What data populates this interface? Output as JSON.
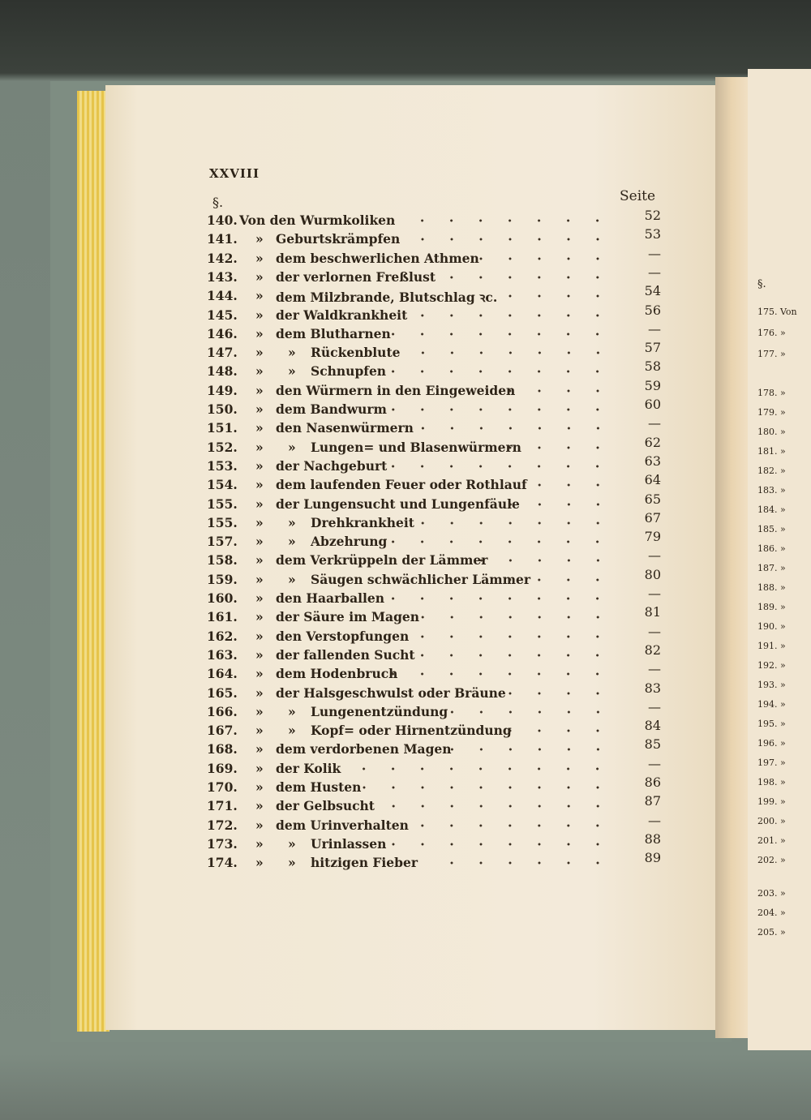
{
  "header": {
    "folio": "XXVIII",
    "section_mark": "§.",
    "page_column_label": "Seite"
  },
  "entries": [
    {
      "num": "140.",
      "quotes": 0,
      "text": "Von den Wurmkoliken",
      "page": "52"
    },
    {
      "num": "141.",
      "quotes": 1,
      "text": "Geburtskrämpfen",
      "page": "53"
    },
    {
      "num": "142.",
      "quotes": 1,
      "text": "dem beschwerlichen Athmen",
      "page": "—"
    },
    {
      "num": "143.",
      "quotes": 1,
      "text": "der verlornen Freßlust",
      "page": "—"
    },
    {
      "num": "144.",
      "quotes": 1,
      "text": "dem Milzbrande, Blutschlag ꝛc.",
      "page": "54"
    },
    {
      "num": "145.",
      "quotes": 1,
      "text": "der Waldkrankheit",
      "page": "56"
    },
    {
      "num": "146.",
      "quotes": 1,
      "text": "dem Blutharnen",
      "page": "—"
    },
    {
      "num": "147.",
      "quotes": 2,
      "text": "Rückenblute",
      "page": "57"
    },
    {
      "num": "148.",
      "quotes": 2,
      "text": "Schnupfen",
      "page": "58"
    },
    {
      "num": "149.",
      "quotes": 1,
      "text": "den Würmern in den Eingeweiden",
      "page": "59"
    },
    {
      "num": "150.",
      "quotes": 1,
      "text": "dem Bandwurm",
      "page": "60"
    },
    {
      "num": "151.",
      "quotes": 1,
      "text": "den Nasenwürmern",
      "page": "—"
    },
    {
      "num": "152.",
      "quotes": 2,
      "text": "Lungen= und Blasenwürmern",
      "page": "62"
    },
    {
      "num": "153.",
      "quotes": 1,
      "text": "der Nachgeburt",
      "page": "63"
    },
    {
      "num": "154.",
      "quotes": 1,
      "text": "dem laufenden Feuer oder Rothlauf",
      "page": "64"
    },
    {
      "num": "155.",
      "quotes": 1,
      "text": "der Lungensucht und Lungenfäule",
      "page": "65"
    },
    {
      "num": "155.",
      "quotes": 2,
      "text": "Drehkrankheit",
      "page": "67"
    },
    {
      "num": "157.",
      "quotes": 2,
      "text": "Abzehrung",
      "page": "79"
    },
    {
      "num": "158.",
      "quotes": 1,
      "text": "dem Verkrüppeln der Lämmer",
      "page": "—"
    },
    {
      "num": "159.",
      "quotes": 2,
      "text": "Säugen schwächlicher Lämmer",
      "page": "80"
    },
    {
      "num": "160.",
      "quotes": 1,
      "text": "den Haarballen",
      "page": "—"
    },
    {
      "num": "161.",
      "quotes": 1,
      "text": "der Säure im Magen",
      "page": "81"
    },
    {
      "num": "162.",
      "quotes": 1,
      "text": "den Verstopfungen",
      "page": "—"
    },
    {
      "num": "163.",
      "quotes": 1,
      "text": "der fallenden Sucht",
      "page": "82"
    },
    {
      "num": "164.",
      "quotes": 1,
      "text": "dem Hodenbruch",
      "page": "—"
    },
    {
      "num": "165.",
      "quotes": 1,
      "text": "der Halsgeschwulst oder Bräune",
      "page": "83"
    },
    {
      "num": "166.",
      "quotes": 2,
      "text": "Lungenentzündung",
      "page": "—"
    },
    {
      "num": "167.",
      "quotes": 2,
      "text": "Kopf= oder Hirnentzündung",
      "page": "84"
    },
    {
      "num": "168.",
      "quotes": 1,
      "text": "dem verdorbenen Magen",
      "page": "85"
    },
    {
      "num": "169.",
      "quotes": 1,
      "text": "der Kolik",
      "page": "—"
    },
    {
      "num": "170.",
      "quotes": 1,
      "text": "dem Husten",
      "page": "86"
    },
    {
      "num": "171.",
      "quotes": 1,
      "text": "der Gelbsucht",
      "page": "87"
    },
    {
      "num": "172.",
      "quotes": 1,
      "text": "dem Urinverhalten",
      "page": "—"
    },
    {
      "num": "173.",
      "quotes": 2,
      "text": "Urinlassen",
      "page": "88"
    },
    {
      "num": "174.",
      "quotes": 2,
      "text": "hitzigen Fieber",
      "page": "89"
    }
  ],
  "quote_mark": "»",
  "right_page": {
    "section_mark": "§.",
    "entries": [
      "175. Von",
      "176. »",
      "177. »",
      "178. »",
      "179. »",
      "180. »",
      "181. »",
      "182. »",
      "183. »",
      "184. »",
      "185. »",
      "186. »",
      "187. »",
      "188. »",
      "189. »",
      "190. »",
      "191. »",
      "192. »",
      "193. »",
      "194. »",
      "195. »",
      "196. »",
      "197. »",
      "198. »",
      "199. »",
      "200. »",
      "201. »",
      "202. »",
      "203. »",
      "204. »",
      "205. »"
    ]
  }
}
